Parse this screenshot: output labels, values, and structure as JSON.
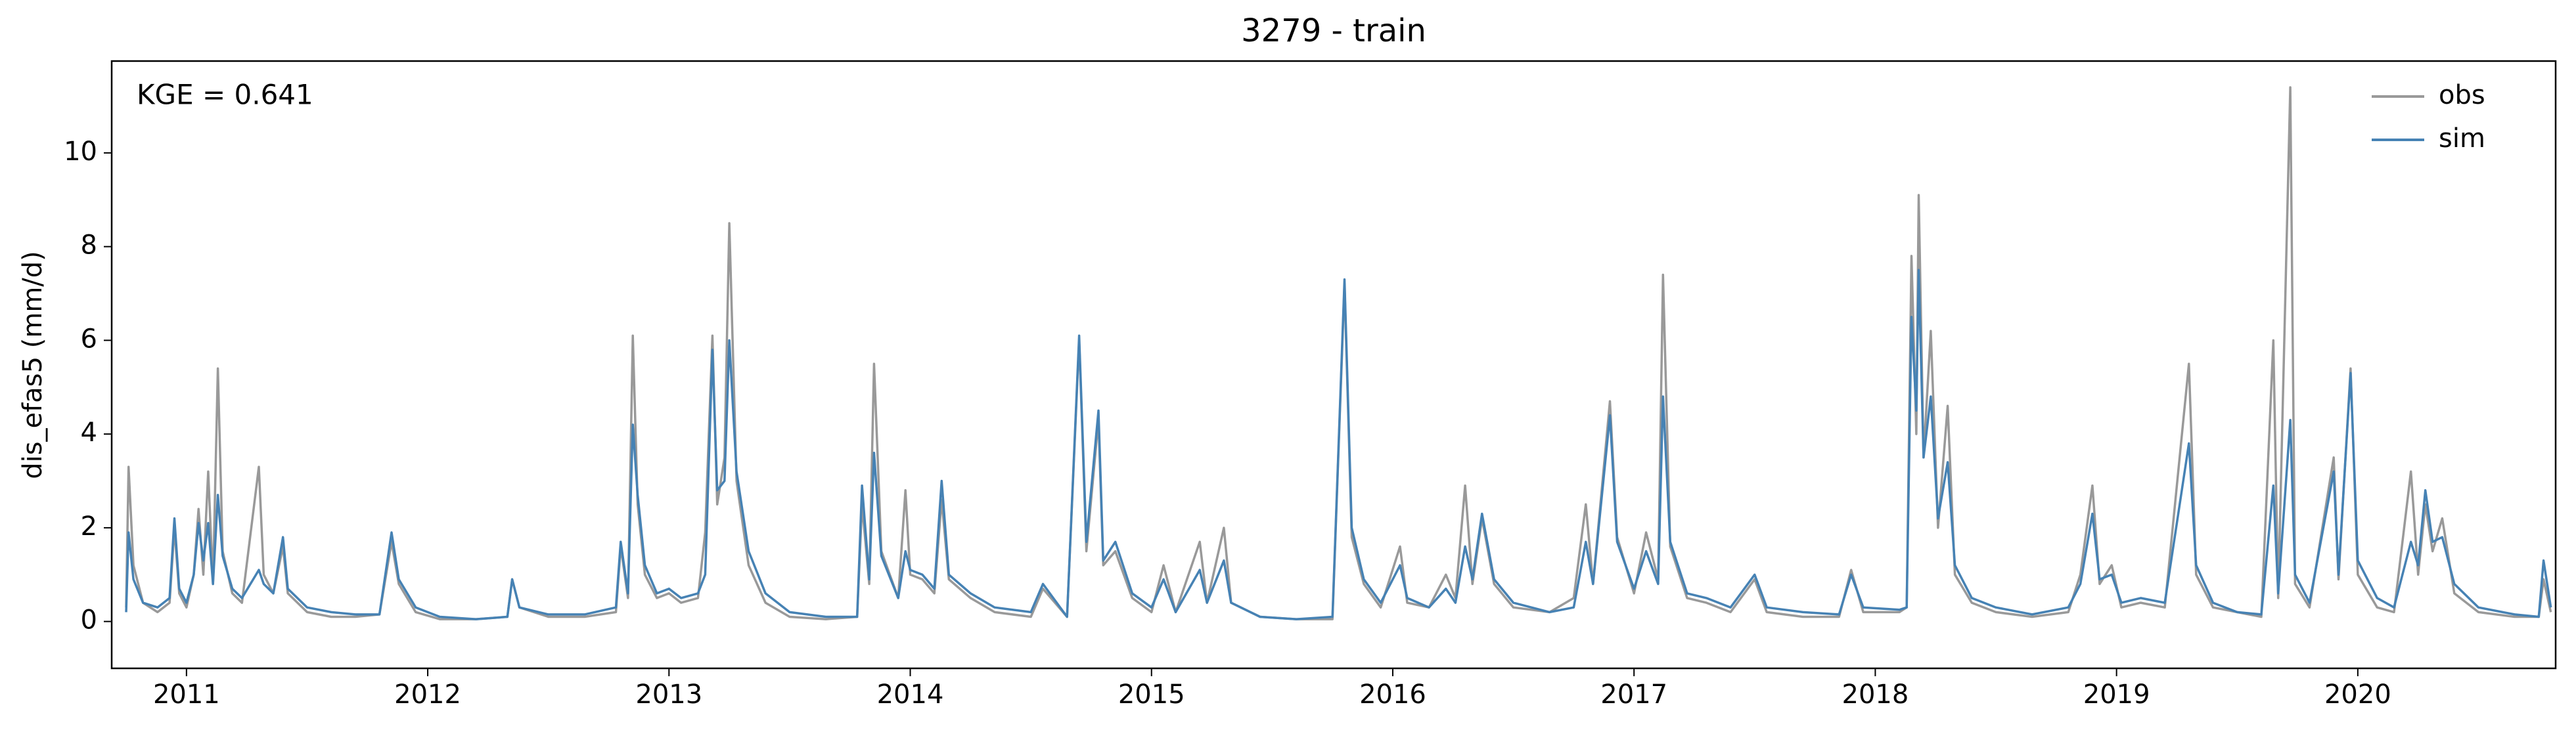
{
  "chart_data": {
    "type": "line",
    "title": "3279 - train",
    "ylabel": "dis_efas5 (mm/d)",
    "annotation": "KGE = 0.641",
    "legend": "upper right",
    "xlim": [
      2010.69,
      2020.82
    ],
    "xticks": [
      2011,
      2012,
      2013,
      2014,
      2015,
      2016,
      2017,
      2018,
      2019,
      2020
    ],
    "ylim": [
      -1,
      11.96
    ],
    "yticks": [
      0,
      2,
      4,
      6,
      8,
      10
    ],
    "x": [
      2010.75,
      2010.76,
      2010.78,
      2010.82,
      2010.88,
      2010.93,
      2010.95,
      2010.97,
      2011.0,
      2011.03,
      2011.05,
      2011.07,
      2011.09,
      2011.11,
      2011.13,
      2011.15,
      2011.19,
      2011.23,
      2011.3,
      2011.32,
      2011.36,
      2011.4,
      2011.42,
      2011.5,
      2011.6,
      2011.7,
      2011.8,
      2011.85,
      2011.88,
      2011.95,
      2012.05,
      2012.2,
      2012.33,
      2012.35,
      2012.38,
      2012.5,
      2012.65,
      2012.78,
      2012.8,
      2012.83,
      2012.85,
      2012.87,
      2012.9,
      2012.95,
      2013.0,
      2013.05,
      2013.12,
      2013.15,
      2013.18,
      2013.2,
      2013.23,
      2013.25,
      2013.28,
      2013.33,
      2013.4,
      2013.5,
      2013.65,
      2013.78,
      2013.8,
      2013.83,
      2013.85,
      2013.88,
      2013.95,
      2013.98,
      2014.0,
      2014.05,
      2014.1,
      2014.13,
      2014.16,
      2014.25,
      2014.35,
      2014.5,
      2014.55,
      2014.65,
      2014.7,
      2014.73,
      2014.78,
      2014.8,
      2014.85,
      2014.92,
      2015.0,
      2015.05,
      2015.1,
      2015.2,
      2015.23,
      2015.3,
      2015.33,
      2015.45,
      2015.6,
      2015.75,
      2015.8,
      2015.83,
      2015.88,
      2015.95,
      2016.03,
      2016.06,
      2016.15,
      2016.22,
      2016.26,
      2016.3,
      2016.33,
      2016.37,
      2016.42,
      2016.5,
      2016.65,
      2016.75,
      2016.8,
      2016.83,
      2016.9,
      2016.93,
      2017.0,
      2017.05,
      2017.1,
      2017.12,
      2017.15,
      2017.22,
      2017.3,
      2017.4,
      2017.5,
      2017.55,
      2017.7,
      2017.85,
      2017.9,
      2017.95,
      2018.1,
      2018.13,
      2018.15,
      2018.17,
      2018.18,
      2018.2,
      2018.23,
      2018.26,
      2018.3,
      2018.33,
      2018.4,
      2018.5,
      2018.65,
      2018.8,
      2018.85,
      2018.9,
      2018.93,
      2018.98,
      2019.02,
      2019.1,
      2019.2,
      2019.3,
      2019.33,
      2019.4,
      2019.5,
      2019.6,
      2019.65,
      2019.67,
      2019.72,
      2019.74,
      2019.8,
      2019.9,
      2019.92,
      2019.97,
      2020.0,
      2020.08,
      2020.15,
      2020.22,
      2020.25,
      2020.28,
      2020.31,
      2020.35,
      2020.4,
      2020.5,
      2020.65,
      2020.75,
      2020.77,
      2020.8
    ],
    "series": [
      {
        "name": "obs",
        "color": "#999999",
        "values": [
          0.3,
          3.3,
          1.2,
          0.4,
          0.2,
          0.4,
          2.0,
          0.6,
          0.3,
          1.0,
          2.4,
          1.0,
          3.2,
          0.8,
          5.4,
          1.5,
          0.6,
          0.4,
          3.3,
          1.0,
          0.6,
          1.6,
          0.6,
          0.2,
          0.1,
          0.1,
          0.15,
          1.7,
          0.8,
          0.2,
          0.05,
          0.05,
          0.1,
          0.9,
          0.3,
          0.1,
          0.1,
          0.2,
          1.6,
          0.5,
          6.1,
          2.5,
          1.0,
          0.5,
          0.6,
          0.4,
          0.5,
          1.9,
          6.1,
          2.5,
          3.5,
          8.5,
          3.0,
          1.2,
          0.4,
          0.1,
          0.05,
          0.1,
          2.5,
          0.8,
          5.5,
          1.5,
          0.5,
          2.8,
          1.0,
          0.9,
          0.6,
          2.6,
          0.9,
          0.5,
          0.2,
          0.1,
          0.7,
          0.1,
          6.0,
          1.5,
          4.3,
          1.2,
          1.5,
          0.5,
          0.2,
          1.2,
          0.2,
          1.7,
          0.4,
          2.0,
          0.4,
          0.1,
          0.05,
          0.05,
          7.2,
          1.8,
          0.8,
          0.3,
          1.6,
          0.4,
          0.3,
          1.0,
          0.5,
          2.9,
          0.8,
          2.2,
          0.8,
          0.3,
          0.2,
          0.5,
          2.5,
          0.8,
          4.7,
          1.8,
          0.6,
          1.9,
          0.9,
          7.4,
          1.6,
          0.5,
          0.4,
          0.2,
          0.9,
          0.2,
          0.1,
          0.1,
          1.1,
          0.2,
          0.2,
          0.3,
          7.8,
          4.0,
          9.1,
          3.5,
          6.2,
          2.0,
          4.6,
          1.0,
          0.4,
          0.2,
          0.1,
          0.2,
          1.0,
          2.9,
          0.8,
          1.2,
          0.3,
          0.4,
          0.3,
          5.5,
          1.0,
          0.3,
          0.2,
          0.1,
          6.0,
          0.5,
          11.4,
          0.8,
          0.3,
          3.5,
          0.9,
          5.4,
          1.0,
          0.3,
          0.2,
          3.2,
          1.0,
          2.5,
          1.5,
          2.2,
          0.6,
          0.2,
          0.1,
          0.1,
          0.9,
          0.2
        ]
      },
      {
        "name": "sim",
        "color": "#4682b4",
        "values": [
          0.2,
          1.9,
          0.9,
          0.4,
          0.3,
          0.5,
          2.2,
          0.7,
          0.4,
          1.0,
          2.1,
          1.3,
          2.1,
          0.8,
          2.7,
          1.4,
          0.7,
          0.5,
          1.1,
          0.8,
          0.6,
          1.8,
          0.7,
          0.3,
          0.2,
          0.15,
          0.15,
          1.9,
          0.9,
          0.3,
          0.1,
          0.05,
          0.1,
          0.9,
          0.3,
          0.15,
          0.15,
          0.3,
          1.7,
          0.6,
          4.2,
          2.7,
          1.2,
          0.6,
          0.7,
          0.5,
          0.6,
          1.0,
          5.8,
          2.8,
          3.0,
          6.0,
          3.2,
          1.5,
          0.6,
          0.2,
          0.1,
          0.1,
          2.9,
          0.9,
          3.6,
          1.4,
          0.5,
          1.5,
          1.1,
          1.0,
          0.7,
          3.0,
          1.0,
          0.6,
          0.3,
          0.2,
          0.8,
          0.1,
          6.1,
          1.7,
          4.5,
          1.3,
          1.7,
          0.6,
          0.3,
          0.9,
          0.2,
          1.1,
          0.4,
          1.3,
          0.4,
          0.1,
          0.05,
          0.1,
          7.3,
          2.0,
          0.9,
          0.4,
          1.2,
          0.5,
          0.3,
          0.7,
          0.4,
          1.6,
          0.9,
          2.3,
          0.9,
          0.4,
          0.2,
          0.3,
          1.7,
          0.8,
          4.4,
          1.7,
          0.7,
          1.5,
          0.8,
          4.8,
          1.7,
          0.6,
          0.5,
          0.3,
          1.0,
          0.3,
          0.2,
          0.15,
          1.0,
          0.3,
          0.25,
          0.3,
          6.5,
          4.5,
          7.5,
          3.5,
          4.8,
          2.2,
          3.4,
          1.2,
          0.5,
          0.3,
          0.15,
          0.3,
          0.8,
          2.3,
          0.9,
          1.0,
          0.4,
          0.5,
          0.4,
          3.8,
          1.2,
          0.4,
          0.2,
          0.15,
          2.9,
          0.6,
          4.3,
          1.0,
          0.4,
          3.2,
          1.0,
          5.3,
          1.3,
          0.5,
          0.3,
          1.7,
          1.2,
          2.8,
          1.7,
          1.8,
          0.8,
          0.3,
          0.15,
          0.1,
          1.3,
          0.3
        ]
      }
    ]
  }
}
